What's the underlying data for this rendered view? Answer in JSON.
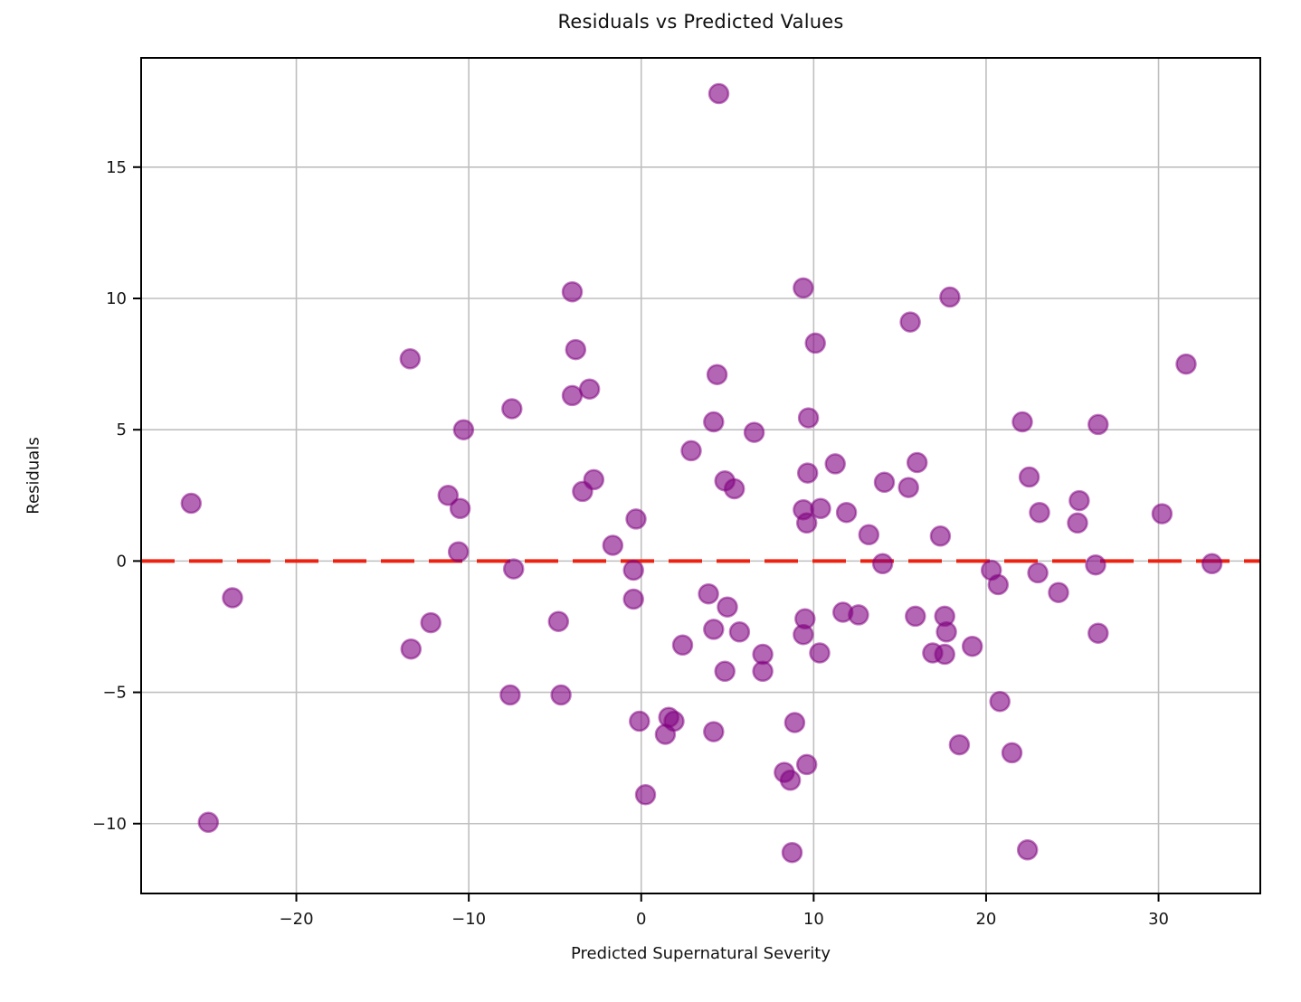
{
  "chart_data": {
    "type": "scatter",
    "title": "Residuals vs Predicted Values",
    "xlabel": "Predicted Supernatural Severity",
    "ylabel": "Residuals",
    "xlim": [
      -29.0,
      35.9
    ],
    "ylim": [
      -12.66,
      19.16
    ],
    "xticks": [
      -20,
      -10,
      0,
      10,
      20,
      30
    ],
    "yticks": [
      -10,
      -5,
      0,
      5,
      10,
      15
    ],
    "grid": true,
    "legend": "none",
    "grid_color": "#bfbfbf",
    "spine_color": "#000000",
    "tick_label_color": "#151515",
    "marker_color": "#800080",
    "marker_alpha": 0.6,
    "zero_line": {
      "y": 0,
      "color": "#ee2211",
      "style": "dashed",
      "label": ""
    },
    "points": [
      [
        4.5,
        17.8
      ],
      [
        -4.0,
        10.25
      ],
      [
        9.4,
        10.4
      ],
      [
        17.9,
        10.05
      ],
      [
        15.6,
        9.1
      ],
      [
        -13.4,
        7.7
      ],
      [
        -3.8,
        8.05
      ],
      [
        10.1,
        8.3
      ],
      [
        4.4,
        7.1
      ],
      [
        31.6,
        7.5
      ],
      [
        -4.0,
        6.3
      ],
      [
        -3.0,
        6.55
      ],
      [
        -7.5,
        5.8
      ],
      [
        4.2,
        5.3
      ],
      [
        6.55,
        4.9
      ],
      [
        9.7,
        5.45
      ],
      [
        22.1,
        5.3
      ],
      [
        26.5,
        5.2
      ],
      [
        -10.3,
        5.0
      ],
      [
        2.9,
        4.2
      ],
      [
        9.65,
        3.35
      ],
      [
        11.25,
        3.7
      ],
      [
        16.0,
        3.75
      ],
      [
        14.1,
        3.0
      ],
      [
        15.5,
        2.8
      ],
      [
        22.5,
        3.2
      ],
      [
        -26.1,
        2.2
      ],
      [
        -11.2,
        2.5
      ],
      [
        -10.5,
        2.0
      ],
      [
        -2.75,
        3.1
      ],
      [
        -3.4,
        2.65
      ],
      [
        4.85,
        3.05
      ],
      [
        5.4,
        2.75
      ],
      [
        9.4,
        1.95
      ],
      [
        10.4,
        2.0
      ],
      [
        9.6,
        1.45
      ],
      [
        11.9,
        1.85
      ],
      [
        13.2,
        1.0
      ],
      [
        17.35,
        0.95
      ],
      [
        23.1,
        1.85
      ],
      [
        25.4,
        2.3
      ],
      [
        25.3,
        1.45
      ],
      [
        30.2,
        1.8
      ],
      [
        -10.6,
        0.35
      ],
      [
        -0.3,
        1.6
      ],
      [
        -1.65,
        0.6
      ],
      [
        -7.4,
        -0.3
      ],
      [
        -0.45,
        -0.35
      ],
      [
        14.0,
        -0.1
      ],
      [
        20.3,
        -0.35
      ],
      [
        23.0,
        -0.45
      ],
      [
        26.35,
        -0.15
      ],
      [
        33.1,
        -0.1
      ],
      [
        20.7,
        -0.9
      ],
      [
        24.2,
        -1.2
      ],
      [
        -23.7,
        -1.4
      ],
      [
        -0.45,
        -1.45
      ],
      [
        3.9,
        -1.25
      ],
      [
        5.0,
        -1.75
      ],
      [
        11.7,
        -1.95
      ],
      [
        12.6,
        -2.05
      ],
      [
        -12.2,
        -2.35
      ],
      [
        -4.8,
        -2.3
      ],
      [
        9.5,
        -2.2
      ],
      [
        15.9,
        -2.1
      ],
      [
        17.6,
        -2.1
      ],
      [
        -13.35,
        -3.35
      ],
      [
        2.4,
        -3.2
      ],
      [
        4.2,
        -2.6
      ],
      [
        5.7,
        -2.7
      ],
      [
        9.4,
        -2.8
      ],
      [
        10.35,
        -3.5
      ],
      [
        16.9,
        -3.5
      ],
      [
        17.6,
        -3.55
      ],
      [
        17.7,
        -2.7
      ],
      [
        19.2,
        -3.25
      ],
      [
        26.5,
        -2.75
      ],
      [
        4.85,
        -4.2
      ],
      [
        7.05,
        -3.55
      ],
      [
        7.05,
        -4.2
      ],
      [
        -7.6,
        -5.1
      ],
      [
        -4.65,
        -5.1
      ],
      [
        20.8,
        -5.35
      ],
      [
        -0.1,
        -6.1
      ],
      [
        1.6,
        -5.95
      ],
      [
        1.9,
        -6.1
      ],
      [
        1.4,
        -6.6
      ],
      [
        4.2,
        -6.5
      ],
      [
        8.9,
        -6.15
      ],
      [
        18.45,
        -7.0
      ],
      [
        21.5,
        -7.3
      ],
      [
        8.3,
        -8.05
      ],
      [
        8.65,
        -8.35
      ],
      [
        9.6,
        -7.75
      ],
      [
        0.25,
        -8.9
      ],
      [
        -25.1,
        -9.95
      ],
      [
        8.75,
        -11.1
      ],
      [
        22.4,
        -11.0
      ]
    ]
  }
}
